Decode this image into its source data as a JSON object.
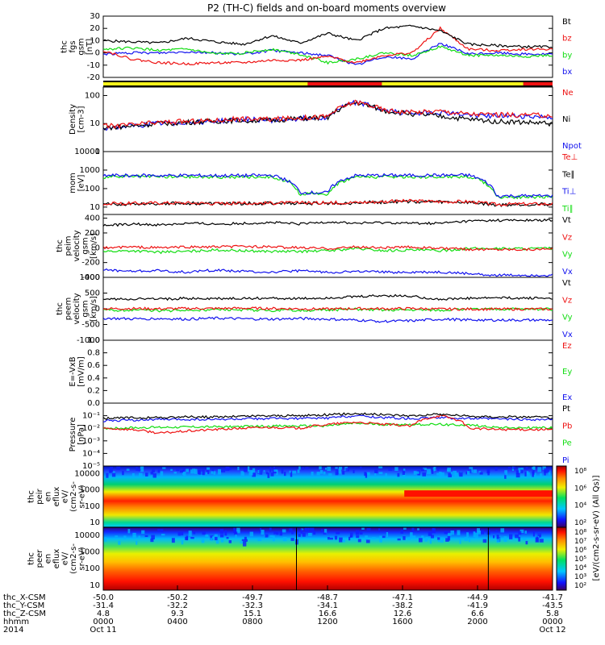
{
  "title": "P2 (TH-C) fields and on-board moments overview",
  "colors": {
    "black": "#000000",
    "red": "#ee1111",
    "green": "#11dd11",
    "blue": "#1111ee",
    "yellow": "#f5f21a"
  },
  "chart_data": [
    {
      "type": "line",
      "id": "fgs",
      "ylabel": [
        "thc",
        "fgs",
        "gsm",
        "[nT]"
      ],
      "ylim": [
        -20,
        30
      ],
      "yticks": [
        -20,
        -10,
        0,
        10,
        20,
        30
      ],
      "series": [
        {
          "name": "Bt",
          "color": "black",
          "values": [
            10,
            9,
            8,
            12,
            9,
            7,
            14,
            8,
            16,
            10,
            20,
            22,
            18,
            7,
            6,
            5,
            5
          ]
        },
        {
          "name": "bz",
          "color": "red",
          "values": [
            2,
            -5,
            -8,
            -9,
            -8,
            -8,
            -6,
            -6,
            -3,
            -8,
            -2,
            0,
            20,
            3,
            2,
            3,
            3
          ]
        },
        {
          "name": "by",
          "color": "green",
          "values": [
            3,
            4,
            2,
            3,
            -1,
            0,
            3,
            -1,
            -8,
            -5,
            0,
            -2,
            5,
            -2,
            -2,
            -3,
            -2
          ]
        },
        {
          "name": "bx",
          "color": "blue",
          "values": [
            -1,
            0,
            0,
            1,
            0,
            -1,
            2,
            0,
            -2,
            -10,
            -3,
            -5,
            8,
            -1,
            0,
            -1,
            -1
          ]
        }
      ]
    },
    {
      "type": "bar",
      "id": "mode",
      "ylabel": [],
      "segments": [
        {
          "from": 0,
          "to": 0.455,
          "color": "yellow"
        },
        {
          "from": 0.455,
          "to": 0.62,
          "color": "red"
        },
        {
          "from": 0.62,
          "to": 0.935,
          "color": "yellow"
        },
        {
          "from": 0.935,
          "to": 1,
          "color": "red"
        }
      ]
    },
    {
      "type": "line",
      "id": "density",
      "log": true,
      "ylabel": [
        "Density",
        "[cm-3]"
      ],
      "ylim": [
        1,
        200
      ],
      "yticks": [
        1,
        10,
        100
      ],
      "ytick_labels": [
        "1",
        "10",
        "100"
      ],
      "series": [
        {
          "name": "Ne",
          "color": "red",
          "values": [
            8,
            9,
            11,
            12,
            13,
            15,
            14,
            16,
            18,
            60,
            30,
            25,
            28,
            22,
            21,
            20,
            19
          ]
        },
        {
          "name": "Ni",
          "color": "black",
          "values": [
            7,
            8,
            10,
            11,
            12,
            13,
            13,
            15,
            16,
            55,
            28,
            22,
            18,
            14,
            12,
            11,
            10
          ]
        },
        {
          "name": "Npot",
          "color": "blue",
          "values": [
            7,
            8,
            10,
            11,
            12,
            14,
            13,
            15,
            17,
            58,
            28,
            24,
            25,
            20,
            19,
            18,
            17
          ]
        }
      ]
    },
    {
      "type": "line",
      "id": "temp",
      "log": true,
      "ylabel": [
        "mom",
        "[eV]"
      ],
      "ylim": [
        4,
        10000
      ],
      "yticks": [
        10,
        100,
        1000,
        10000
      ],
      "ytick_labels": [
        "10",
        "100",
        "1000",
        "10000"
      ],
      "series": [
        {
          "name": "Te⊥",
          "color": "red",
          "values": [
            15,
            16,
            17,
            17,
            16,
            16,
            17,
            17,
            17,
            18,
            20,
            22,
            20,
            20,
            14,
            15,
            15
          ]
        },
        {
          "name": "Te∥",
          "color": "black",
          "values": [
            14,
            15,
            16,
            16,
            15,
            16,
            16,
            16,
            16,
            17,
            19,
            20,
            19,
            18,
            13,
            14,
            14
          ]
        },
        {
          "name": "Ti⊥",
          "color": "blue",
          "values": [
            500,
            520,
            500,
            510,
            500,
            500,
            520,
            60,
            60,
            500,
            520,
            510,
            520,
            530,
            40,
            40,
            40
          ]
        },
        {
          "name": "Ti∥",
          "color": "green",
          "values": [
            420,
            440,
            430,
            430,
            420,
            420,
            440,
            50,
            50,
            430,
            440,
            430,
            440,
            450,
            35,
            35,
            35
          ]
        }
      ]
    },
    {
      "type": "line",
      "id": "peim",
      "ylabel": [
        "thc",
        "peim",
        "velocity",
        "gsm",
        "[km/s]"
      ],
      "ylim": [
        -400,
        450
      ],
      "yticks": [
        -400,
        -200,
        0,
        200,
        400
      ],
      "series": [
        {
          "name": "Vt",
          "color": "black",
          "values": [
            300,
            320,
            310,
            330,
            320,
            330,
            340,
            320,
            350,
            330,
            340,
            330,
            330,
            360,
            370,
            370,
            370
          ]
        },
        {
          "name": "Vz",
          "color": "red",
          "values": [
            0,
            10,
            0,
            10,
            10,
            20,
            10,
            0,
            -10,
            10,
            0,
            10,
            -10,
            -20,
            -20,
            -20,
            -20
          ]
        },
        {
          "name": "Vy",
          "color": "green",
          "values": [
            -50,
            -40,
            -60,
            -50,
            -30,
            -40,
            -50,
            -50,
            -40,
            -10,
            -40,
            -30,
            -40,
            -10,
            -10,
            -10,
            -10
          ]
        },
        {
          "name": "Vx",
          "color": "blue",
          "values": [
            -300,
            -320,
            -310,
            -330,
            -300,
            -320,
            -330,
            -310,
            -330,
            -320,
            -330,
            -330,
            -330,
            -350,
            -370,
            -370,
            -370
          ]
        }
      ]
    },
    {
      "type": "line",
      "id": "peem",
      "ylabel": [
        "thc",
        "peem",
        "velocity",
        "gsm",
        "[km/s]"
      ],
      "ylim": [
        -1000,
        1000
      ],
      "yticks": [
        -1000,
        -500,
        0,
        500,
        1000
      ],
      "series": [
        {
          "name": "Vt",
          "color": "black",
          "values": [
            300,
            320,
            310,
            330,
            320,
            330,
            340,
            320,
            350,
            380,
            420,
            400,
            300,
            330,
            350,
            340,
            340
          ]
        },
        {
          "name": "Vz",
          "color": "red",
          "values": [
            0,
            10,
            0,
            10,
            10,
            20,
            10,
            0,
            -10,
            10,
            0,
            10,
            -10,
            -10,
            -10,
            -10,
            -10
          ]
        },
        {
          "name": "Vy",
          "color": "green",
          "values": [
            -50,
            -40,
            -60,
            -50,
            -30,
            -40,
            -50,
            -50,
            -40,
            -10,
            -40,
            -30,
            -40,
            -10,
            -10,
            -10,
            -10
          ]
        },
        {
          "name": "Vx",
          "color": "blue",
          "values": [
            -300,
            -320,
            -310,
            -330,
            -300,
            -320,
            -330,
            -310,
            -330,
            -360,
            -400,
            -380,
            -330,
            -350,
            -360,
            -360,
            -360
          ]
        }
      ]
    },
    {
      "type": "line",
      "id": "efield",
      "ylabel": [
        "E=-VxB",
        "[mV/m]"
      ],
      "ylim": [
        0,
        1
      ],
      "yticks": [
        0,
        0.2,
        0.4,
        0.6,
        0.8,
        1.0
      ],
      "ytick_labels": [
        "0.0",
        "0.2",
        "0.4",
        "0.6",
        "0.8",
        "1.0"
      ],
      "series": [
        {
          "name": "Ez",
          "color": "red",
          "values": []
        },
        {
          "name": "Ey",
          "color": "green",
          "values": []
        },
        {
          "name": "Ex",
          "color": "blue",
          "values": []
        }
      ]
    },
    {
      "type": "line",
      "id": "pressure",
      "log": true,
      "ylabel": [
        "Pressure",
        "[nPa]"
      ],
      "ylim": [
        1e-05,
        1
      ],
      "yticks": [
        1e-05,
        0.0001,
        0.001,
        0.01,
        0.1
      ],
      "ytick_labels": [
        "10⁻⁵",
        "10⁻⁴",
        "10⁻³",
        "10⁻²",
        "10⁻¹"
      ],
      "series": [
        {
          "name": "Pt",
          "color": "black",
          "values": [
            0.06,
            0.07,
            0.07,
            0.08,
            0.08,
            0.09,
            0.1,
            0.1,
            0.12,
            0.15,
            0.12,
            0.1,
            0.13,
            0.09,
            0.08,
            0.08,
            0.07
          ]
        },
        {
          "name": "Pb",
          "color": "red",
          "values": [
            0.01,
            0.008,
            0.004,
            0.006,
            0.008,
            0.01,
            0.012,
            0.01,
            0.02,
            0.03,
            0.02,
            0.015,
            0.1,
            0.01,
            0.008,
            0.008,
            0.008
          ]
        },
        {
          "name": "Pe",
          "color": "green",
          "values": [
            0.01,
            0.011,
            0.012,
            0.013,
            0.013,
            0.014,
            0.015,
            0.015,
            0.016,
            0.025,
            0.02,
            0.02,
            0.02,
            0.018,
            0.012,
            0.011,
            0.011
          ]
        },
        {
          "name": "Pi",
          "color": "blue",
          "values": [
            0.04,
            0.045,
            0.05,
            0.05,
            0.05,
            0.055,
            0.06,
            0.06,
            0.065,
            0.1,
            0.07,
            0.06,
            0.07,
            0.06,
            0.055,
            0.05,
            0.05
          ]
        }
      ]
    },
    {
      "type": "heatmap",
      "id": "peir",
      "log": true,
      "ylabel": [
        "thc",
        "peir",
        "en",
        "eflux",
        "eV/",
        "(cm2-s-",
        "sr-eV)"
      ],
      "ylim": [
        5,
        30000
      ],
      "yticks": [
        10,
        100,
        1000,
        10000
      ],
      "ytick_labels": [
        "10",
        "100",
        "1000",
        "10000"
      ],
      "colorbar": {
        "label": "[eV/(cm2-s-sr-eV) (All Qs)]",
        "labels": [
          "10²",
          "10⁴",
          "10⁶",
          "10⁸"
        ]
      }
    },
    {
      "type": "heatmap",
      "id": "peer",
      "log": true,
      "ylabel": [
        "thc",
        "peer",
        "en",
        "eflux",
        "eV/",
        "(cm2-s-",
        "sr-eV)"
      ],
      "ylim": [
        5,
        30000
      ],
      "yticks": [
        10,
        100,
        1000,
        10000
      ],
      "ytick_labels": [
        "10",
        "100",
        "1000",
        "10000"
      ],
      "colorbar": {
        "label": "[eV/(cm2-s-sr-eV) (All Qs)]",
        "labels": [
          "10²",
          "10³",
          "10⁴",
          "10⁵",
          "10⁶",
          "10⁷",
          "10⁸"
        ]
      }
    }
  ],
  "xaxis": {
    "rows": [
      {
        "label": "thc_X-CSM",
        "values": [
          "-50.0",
          "-50.2",
          "-49.7",
          "-48.7",
          "-47.1",
          "-44.9",
          "-41.7"
        ]
      },
      {
        "label": "thc_Y-CSM",
        "values": [
          "-31.4",
          "-32.2",
          "-32.3",
          "-34.1",
          "-38.2",
          "-41.9",
          "-43.5"
        ]
      },
      {
        "label": "thc_Z-CSM",
        "values": [
          "4.8",
          "9.3",
          "15.1",
          "16.6",
          "12.6",
          "6.6",
          "5.8"
        ]
      },
      {
        "label": "hhmm",
        "values": [
          "0000",
          "0400",
          "0800",
          "1200",
          "1600",
          "2000",
          "0000"
        ]
      },
      {
        "label": "2014",
        "values": [
          "Oct 11",
          "",
          "",
          "",
          "",
          "",
          "Oct 12"
        ]
      }
    ]
  }
}
